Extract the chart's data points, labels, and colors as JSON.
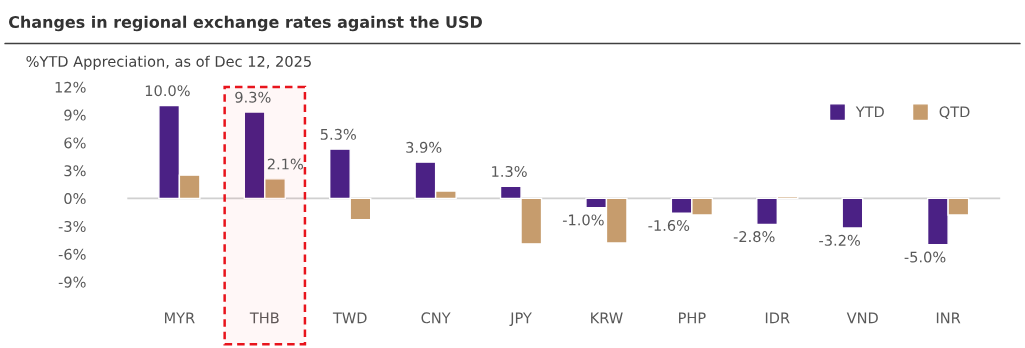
{
  "chart_data": {
    "type": "bar",
    "title": "Changes in regional exchange rates against the USD",
    "subtitle": "%YTD Appreciation, as of Dec 12, 2025",
    "categories": [
      "MYR",
      "THB",
      "TWD",
      "CNY",
      "JPY",
      "KRW",
      "PHP",
      "IDR",
      "VND",
      "INR"
    ],
    "series": [
      {
        "name": "YTD",
        "color": "#4b2185",
        "values": [
          10.0,
          9.3,
          5.3,
          3.9,
          1.3,
          -1.0,
          -1.6,
          -2.8,
          -3.2,
          -5.0
        ],
        "value_labels": [
          "10.0%",
          "9.3%",
          "5.3%",
          "3.9%",
          "1.3%",
          "-1.0%",
          "-1.6%",
          "-2.8%",
          "-3.2%",
          "-5.0%"
        ]
      },
      {
        "name": "QTD",
        "color": "#c69c6d",
        "values": [
          2.5,
          2.1,
          -2.3,
          0.8,
          -4.9,
          -4.8,
          -1.8,
          0.2,
          null,
          -1.8
        ],
        "value_labels": [
          null,
          "2.1%",
          null,
          null,
          null,
          null,
          null,
          null,
          null,
          null
        ]
      }
    ],
    "ylim": [
      -9,
      12
    ],
    "yticks": [
      {
        "value": -9,
        "label": "-9%"
      },
      {
        "value": -6,
        "label": "-6%"
      },
      {
        "value": -3,
        "label": "-3%"
      },
      {
        "value": 0,
        "label": "0%"
      },
      {
        "value": 3,
        "label": "3%"
      },
      {
        "value": 6,
        "label": "6%"
      },
      {
        "value": 9,
        "label": "9%"
      },
      {
        "value": 12,
        "label": "12%"
      }
    ],
    "bands": [
      {
        "axis": "x",
        "from": "THB",
        "to": "THB",
        "color": "#e8141c"
      }
    ],
    "legend": "top right"
  }
}
